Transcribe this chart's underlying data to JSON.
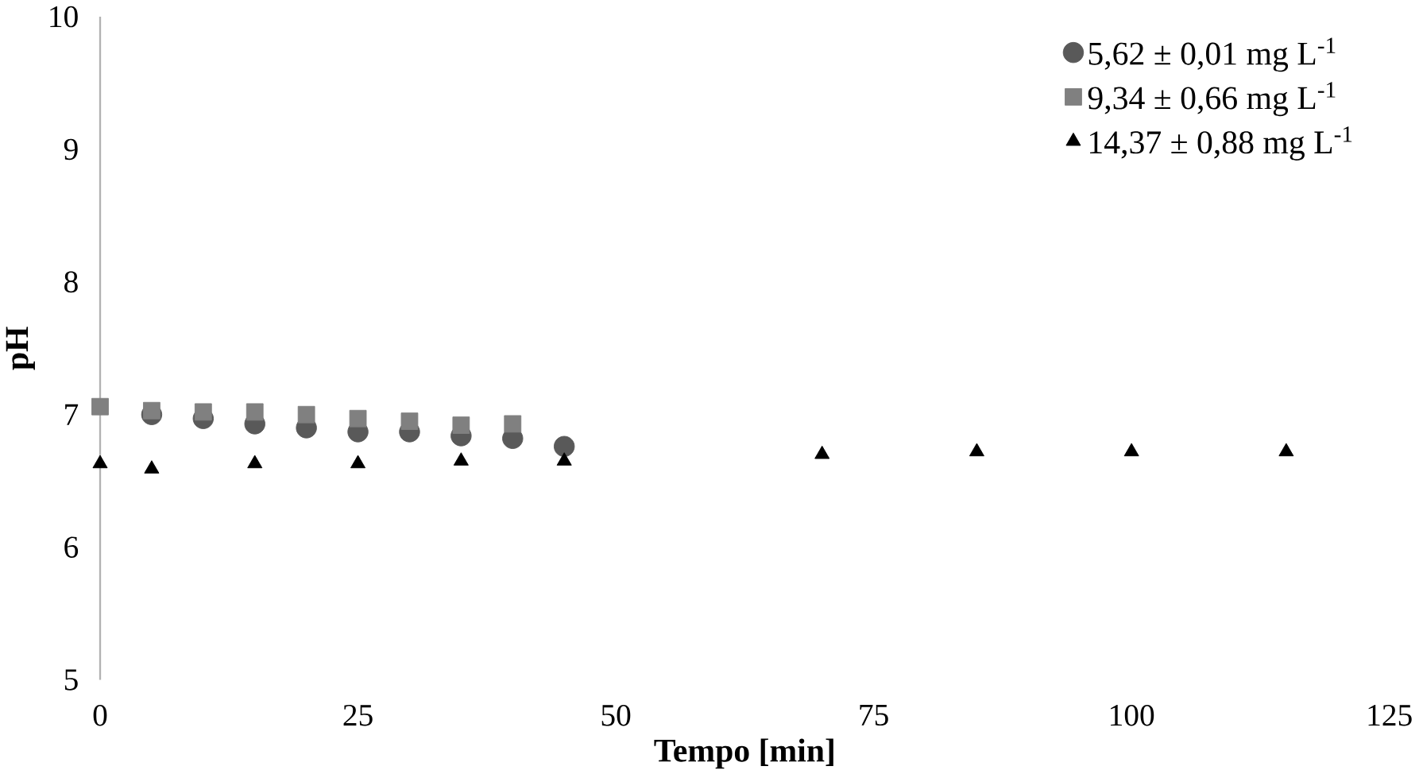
{
  "chart_data": {
    "type": "scatter",
    "xlabel": "Tempo [min]",
    "ylabel": "pH",
    "xlim": [
      0,
      125
    ],
    "ylim": [
      5,
      10
    ],
    "xticks": [
      0,
      25,
      50,
      75,
      100,
      125
    ],
    "yticks": [
      5,
      6,
      7,
      8,
      9,
      10
    ],
    "legend": "top right",
    "grid": false,
    "series": [
      {
        "name": "5,62 ± 0,01  mg L$^{-1}$",
        "color": "#595959",
        "marker": "circle",
        "x": [
          5,
          10,
          15,
          20,
          25,
          30,
          35,
          40,
          45
        ],
        "values": [
          7.0,
          6.97,
          6.93,
          6.9,
          6.87,
          6.87,
          6.84,
          6.82,
          6.76
        ]
      },
      {
        "name": "9,34 ± 0,66 mg L$^{-1}$",
        "color": "#808080",
        "marker": "square",
        "x": [
          0,
          5,
          10,
          15,
          20,
          25,
          30,
          35,
          40
        ],
        "values": [
          7.06,
          7.03,
          7.02,
          7.02,
          7.0,
          6.97,
          6.95,
          6.92,
          6.93
        ]
      },
      {
        "name": "14,37 ± 0,88 mg L$^{-1}$",
        "color": "#000000",
        "marker": "triangle",
        "x": [
          0,
          5,
          15,
          25,
          35,
          45,
          70,
          85,
          100,
          115
        ],
        "values": [
          6.63,
          6.59,
          6.63,
          6.63,
          6.65,
          6.65,
          6.7,
          6.72,
          6.72,
          6.72
        ]
      }
    ]
  }
}
